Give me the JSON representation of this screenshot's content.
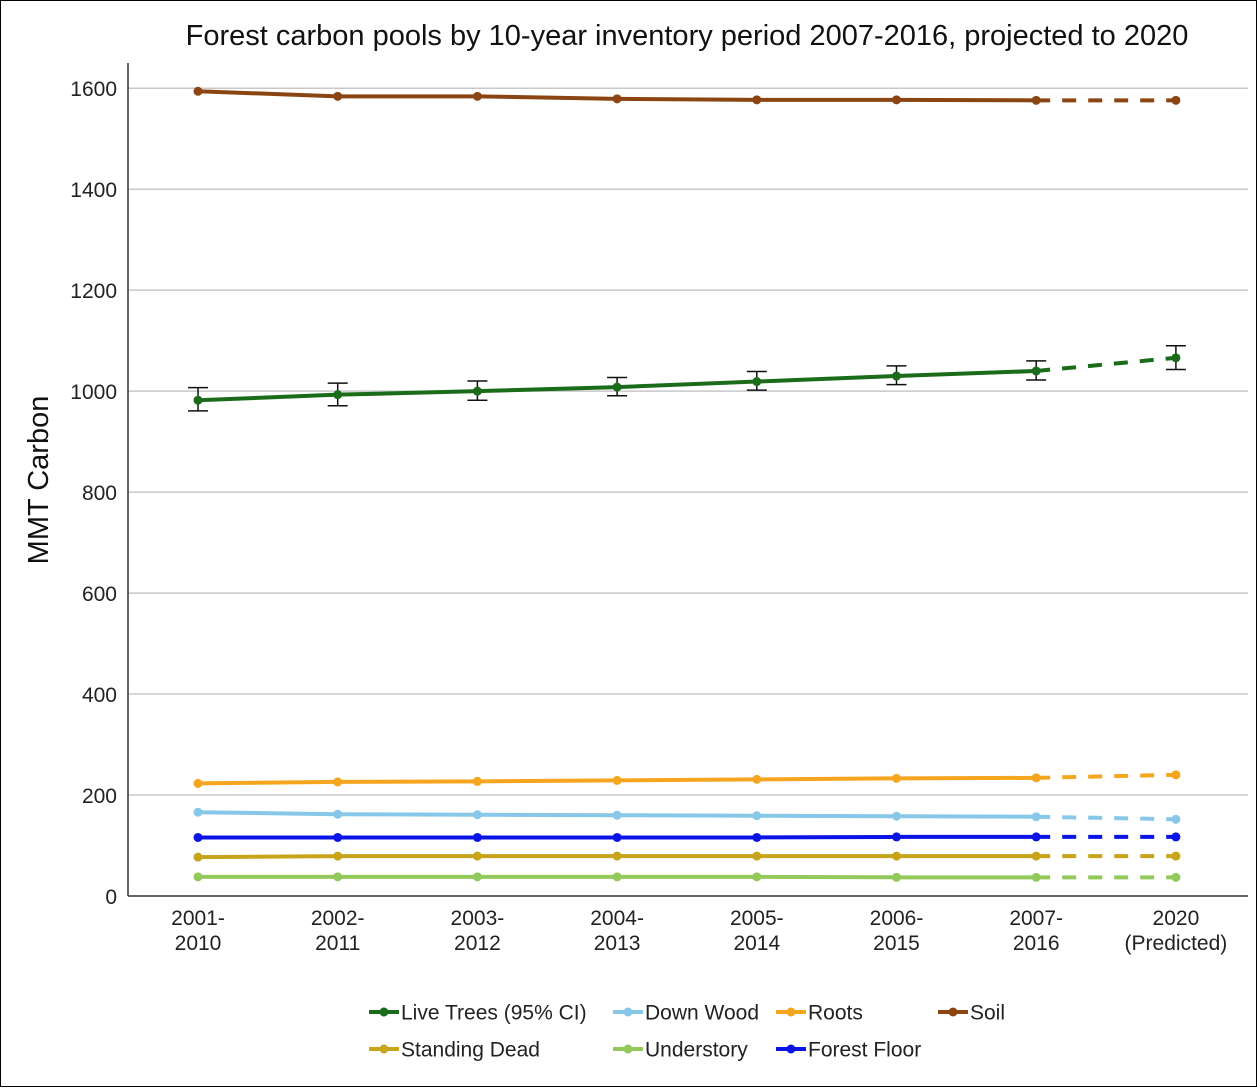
{
  "chart_data": {
    "type": "line",
    "title": "Forest carbon pools by 10-year inventory period 2007-2016, projected to 2020",
    "xlabel": "",
    "ylabel": "MMT Carbon",
    "ylim": [
      0,
      1650
    ],
    "yticks": [
      0,
      200,
      400,
      600,
      800,
      1000,
      1200,
      1400,
      1600
    ],
    "grid": "horizontal",
    "legend_position": "bottom",
    "categories": [
      [
        "2001-",
        "2010"
      ],
      [
        "2002-",
        "2011"
      ],
      [
        "2003-",
        "2012"
      ],
      [
        "2004-",
        "2013"
      ],
      [
        "2005-",
        "2014"
      ],
      [
        "2006-",
        "2015"
      ],
      [
        "2007-",
        "2016"
      ],
      [
        "2020",
        "(Predicted)"
      ]
    ],
    "projected_from_index": 6,
    "series": [
      {
        "name": "Live Trees (95% CI)",
        "color": "#1a6b1a",
        "values": [
          982,
          993,
          1000,
          1008,
          1019,
          1030,
          1040,
          1066
        ],
        "ci_lower": [
          961,
          971,
          982,
          991,
          1002,
          1013,
          1022,
          1043
        ],
        "ci_upper": [
          1007,
          1016,
          1020,
          1027,
          1039,
          1050,
          1060,
          1090
        ]
      },
      {
        "name": "Down Wood",
        "color": "#87c8e8",
        "values": [
          166,
          162,
          161,
          160,
          159,
          158,
          157,
          152
        ]
      },
      {
        "name": "Roots",
        "color": "#f5a51e",
        "values": [
          223,
          226,
          227,
          229,
          231,
          233,
          234,
          240
        ]
      },
      {
        "name": "Soil",
        "color": "#8b4513",
        "values": [
          1594,
          1584,
          1584,
          1579,
          1577,
          1577,
          1576,
          1576
        ]
      },
      {
        "name": "Standing Dead",
        "color": "#c8a41a",
        "values": [
          77,
          79,
          79,
          79,
          79,
          79,
          79,
          79
        ]
      },
      {
        "name": "Understory",
        "color": "#92c95a",
        "values": [
          38,
          38,
          38,
          38,
          38,
          37,
          37,
          37
        ]
      },
      {
        "name": "Forest Floor",
        "color": "#0a14e6",
        "values": [
          116,
          116,
          116,
          116,
          116,
          117,
          117,
          117
        ]
      }
    ],
    "legend_order": [
      "Live Trees (95% CI)",
      "Down Wood",
      "Roots",
      "Soil",
      "Standing Dead",
      "Understory",
      "Forest Floor"
    ]
  }
}
